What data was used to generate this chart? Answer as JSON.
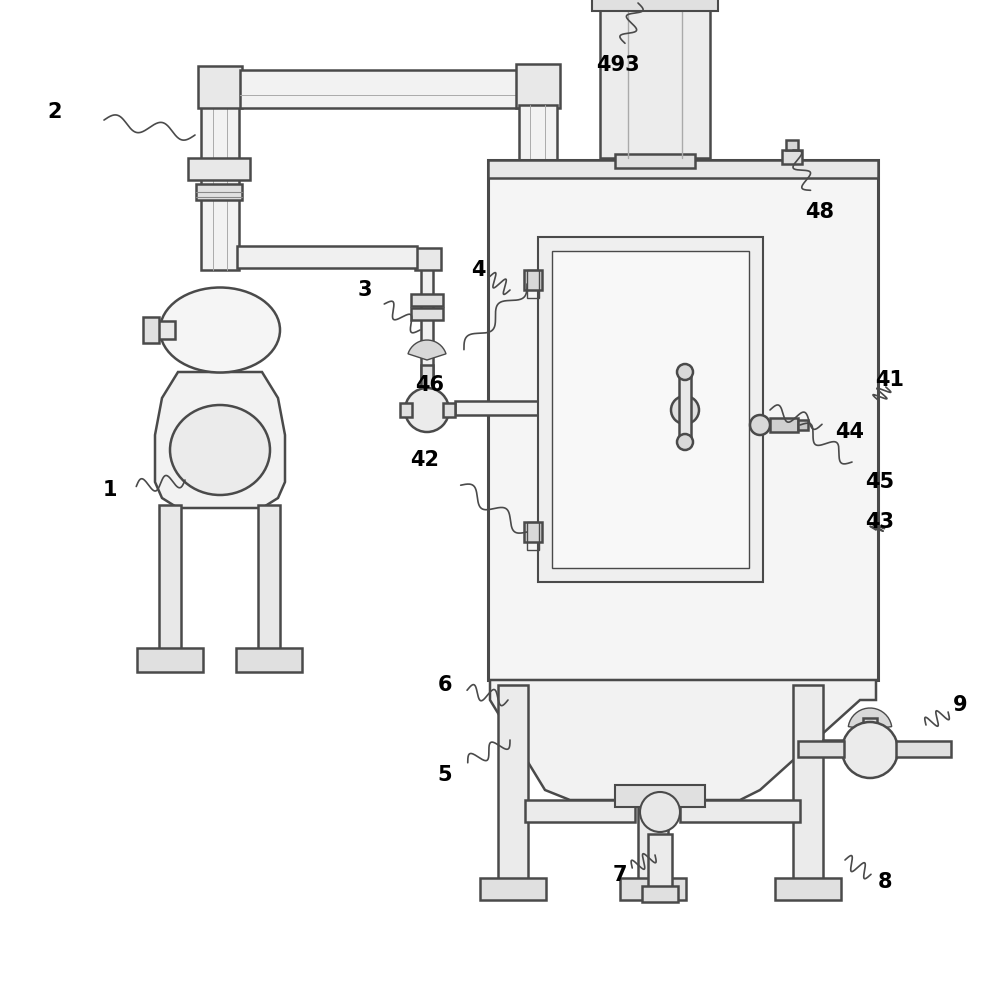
{
  "bg_color": "#ffffff",
  "lc": "#4a4a4a",
  "lw": 1.8,
  "fig_w": 10.0,
  "fig_h": 9.9,
  "dpi": 100
}
